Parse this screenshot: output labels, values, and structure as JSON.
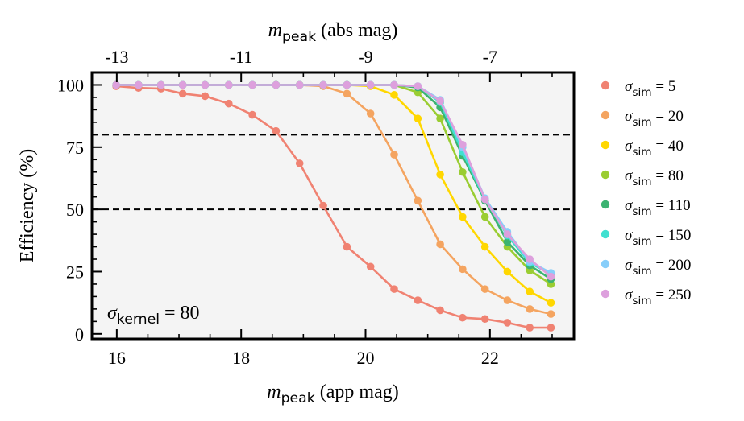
{
  "chart_data": {
    "type": "line",
    "xlabel": "m_peak (app mag)",
    "xlabel_parts": {
      "sym": "m",
      "sub": "peak",
      "rest": " (app mag)"
    },
    "ylabel": "Efficiency (%)",
    "top_xlabel": "m_peak (abs mag)",
    "top_xlabel_parts": {
      "sym": "m",
      "sub": "peak",
      "rest": " (abs mag)"
    },
    "xlim": [
      15.6,
      23.35
    ],
    "ylim": [
      -2,
      105
    ],
    "xticks": [
      16,
      18,
      20,
      22
    ],
    "yticks": [
      0,
      25,
      50,
      75,
      100
    ],
    "top_xticks": [
      -13,
      -11,
      -9,
      -7
    ],
    "top_xtick_offset": 29,
    "hlines": [
      80,
      50
    ],
    "annotation": {
      "sym": "σ",
      "sub": "kernel",
      "rest": " = 80"
    },
    "legend_position": "outside-right",
    "x": [
      15.99,
      16.35,
      16.71,
      17.06,
      17.42,
      17.8,
      18.18,
      18.56,
      18.94,
      19.32,
      19.7,
      20.08,
      20.46,
      20.84,
      21.2,
      21.56,
      21.92,
      22.28,
      22.64,
      22.98
    ],
    "series": [
      {
        "name": "5",
        "color": "#F08272",
        "values": [
          99.5,
          98.8,
          98.5,
          96.5,
          95.5,
          92.5,
          88,
          81.5,
          68.5,
          51.5,
          35,
          27,
          18,
          13.5,
          9.5,
          6.5,
          6,
          4.5,
          2.5,
          2.5
        ]
      },
      {
        "name": "20",
        "color": "#F4A460",
        "values": [
          100,
          100,
          100,
          100,
          100,
          100,
          100,
          100,
          100,
          99.5,
          96.5,
          88.5,
          72,
          53.5,
          36,
          26,
          18,
          13.5,
          10,
          8
        ]
      },
      {
        "name": "40",
        "color": "#FFD700",
        "values": [
          100,
          100,
          100,
          100,
          100,
          100,
          100,
          100,
          100,
          100,
          100,
          99.5,
          96,
          86.5,
          64,
          47,
          35,
          25,
          17,
          12.5
        ]
      },
      {
        "name": "80",
        "color": "#9ACD32",
        "values": [
          100,
          100,
          100,
          100,
          100,
          100,
          100,
          100,
          100,
          100,
          100,
          100,
          100,
          97,
          86.5,
          65,
          47,
          35,
          25.5,
          20
        ]
      },
      {
        "name": "110",
        "color": "#3CB371",
        "values": [
          100,
          100,
          100,
          100,
          100,
          100,
          100,
          100,
          100,
          100,
          100,
          100,
          100,
          99,
          91,
          71.5,
          53.5,
          37,
          27.5,
          22
        ]
      },
      {
        "name": "150",
        "color": "#40E0D0",
        "values": [
          100,
          100,
          100,
          100,
          100,
          100,
          100,
          100,
          100,
          100,
          100,
          100,
          100,
          99.5,
          93,
          73,
          54,
          39.5,
          28.5,
          24
        ]
      },
      {
        "name": "200",
        "color": "#87CEFA",
        "values": [
          100,
          100,
          100,
          100,
          100,
          100,
          100,
          100,
          100,
          100,
          100,
          100,
          100,
          99.5,
          94,
          75,
          54.5,
          41,
          29,
          24.5
        ]
      },
      {
        "name": "250",
        "color": "#DDA0DD",
        "values": [
          100,
          100,
          100,
          100,
          100,
          100,
          100,
          100,
          100,
          100,
          100,
          100,
          100,
          99.5,
          93.5,
          76,
          54,
          40,
          30,
          23
        ]
      }
    ],
    "legend_entries": [
      {
        "sym": "σ",
        "sub": "sim",
        "rest": " = 5"
      },
      {
        "sym": "σ",
        "sub": "sim",
        "rest": " = 20"
      },
      {
        "sym": "σ",
        "sub": "sim",
        "rest": " = 40"
      },
      {
        "sym": "σ",
        "sub": "sim",
        "rest": " = 80"
      },
      {
        "sym": "σ",
        "sub": "sim",
        "rest": " = 110"
      },
      {
        "sym": "σ",
        "sub": "sim",
        "rest": " = 150"
      },
      {
        "sym": "σ",
        "sub": "sim",
        "rest": " = 200"
      },
      {
        "sym": "σ",
        "sub": "sim",
        "rest": " = 250"
      }
    ],
    "plot_background": "#F4F4F4",
    "hline_color": "#000000"
  }
}
